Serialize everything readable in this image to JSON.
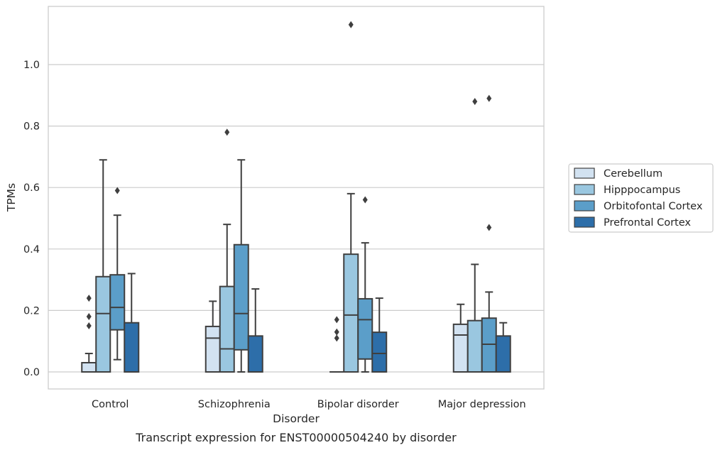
{
  "chart_data": {
    "type": "box",
    "caption": "Transcript expression for ENST00000504240 by disorder",
    "xlabel": "Disorder",
    "ylabel": "TPMs",
    "ylim": [
      -0.055,
      1.195
    ],
    "yticks": [
      "0.0",
      "0.2",
      "0.4",
      "0.6",
      "0.8",
      "1.0"
    ],
    "grid": true,
    "legend_position": "right",
    "categories": [
      "Control",
      "Schizophrenia",
      "Bipolar disorder",
      "Major depression"
    ],
    "series": [
      {
        "name": "Cerebellum",
        "color": "#d2e2f1",
        "boxes": [
          {
            "low": 0.0,
            "q1": 0.0,
            "median": 0.0,
            "q3": 0.03,
            "high": 0.06,
            "outliers": [
              0.24,
              0.18,
              0.15
            ]
          },
          {
            "low": 0.0,
            "q1": 0.0,
            "median": 0.11,
            "q3": 0.148,
            "high": 0.23,
            "outliers": []
          },
          {
            "low": 0.0,
            "q1": 0.0,
            "median": 0.0,
            "q3": 0.0,
            "high": 0.0,
            "outliers": [
              0.17,
              0.13,
              0.11
            ]
          },
          {
            "low": 0.0,
            "q1": 0.0,
            "median": 0.12,
            "q3": 0.155,
            "high": 0.22,
            "outliers": []
          }
        ]
      },
      {
        "name": "Hipppocampus",
        "color": "#9ac7e0",
        "boxes": [
          {
            "low": 0.0,
            "q1": 0.0,
            "median": 0.19,
            "q3": 0.31,
            "high": 0.69,
            "outliers": []
          },
          {
            "low": 0.0,
            "q1": 0.0,
            "median": 0.075,
            "q3": 0.278,
            "high": 0.48,
            "outliers": [
              0.78
            ]
          },
          {
            "low": 0.0,
            "q1": 0.0,
            "median": 0.185,
            "q3": 0.383,
            "high": 0.58,
            "outliers": [
              1.13
            ]
          },
          {
            "low": 0.0,
            "q1": 0.0,
            "median": 0.0,
            "q3": 0.167,
            "high": 0.35,
            "outliers": [
              0.88
            ]
          }
        ]
      },
      {
        "name": "Orbitofontal Cortex",
        "color": "#5b9ec9",
        "boxes": [
          {
            "low": 0.04,
            "q1": 0.137,
            "median": 0.21,
            "q3": 0.316,
            "high": 0.51,
            "outliers": [
              0.59
            ]
          },
          {
            "low": 0.0,
            "q1": 0.072,
            "median": 0.19,
            "q3": 0.414,
            "high": 0.69,
            "outliers": []
          },
          {
            "low": 0.0,
            "q1": 0.042,
            "median": 0.17,
            "q3": 0.238,
            "high": 0.42,
            "outliers": [
              0.56
            ]
          },
          {
            "low": 0.0,
            "q1": 0.0,
            "median": 0.09,
            "q3": 0.175,
            "high": 0.26,
            "outliers": [
              0.89,
              0.47
            ]
          }
        ]
      },
      {
        "name": "Prefrontal Cortex",
        "color": "#2d6ea9",
        "boxes": [
          {
            "low": 0.0,
            "q1": 0.0,
            "median": 0.0,
            "q3": 0.16,
            "high": 0.32,
            "outliers": []
          },
          {
            "low": 0.0,
            "q1": 0.0,
            "median": 0.0,
            "q3": 0.117,
            "high": 0.27,
            "outliers": []
          },
          {
            "low": 0.0,
            "q1": 0.0,
            "median": 0.06,
            "q3": 0.129,
            "high": 0.24,
            "outliers": []
          },
          {
            "low": 0.0,
            "q1": 0.0,
            "median": 0.0,
            "q3": 0.117,
            "high": 0.16,
            "outliers": []
          }
        ]
      }
    ]
  }
}
